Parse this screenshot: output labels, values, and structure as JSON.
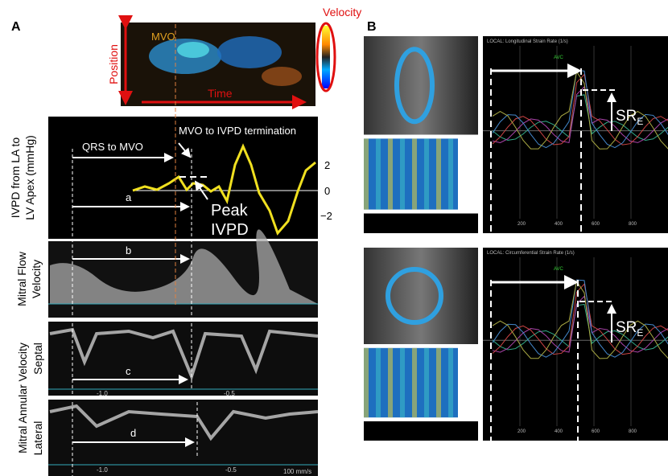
{
  "panel_a": {
    "letter": "A",
    "velocity": "Velocity",
    "mvo": "MVO",
    "position": "Position",
    "time": "Time",
    "ivpd_label": [
      "IVPD from LA to",
      "LV Apex (mmHg)"
    ],
    "qrs_to_mvo": "QRS to MVO",
    "mvo_to_termination": "MVO to IVPD termination",
    "ivpd_axis": [
      "2",
      "0",
      "−2"
    ],
    "peak_ivpd": [
      "Peak",
      "IVPD"
    ],
    "intervals": [
      "a",
      "b",
      "c",
      "d"
    ],
    "mitral_flow_label": [
      "Mitral Flow",
      "Velocity"
    ],
    "annular_label": "Mitral Annular Velocity",
    "septal": "Septal",
    "lateral": "Lateral",
    "septal_scale": [
      "-1.0",
      "-0.5"
    ],
    "lateral_scale": [
      "-1.0",
      "-0.5",
      "100 mm/s"
    ]
  },
  "panel_b": {
    "letter": "B",
    "top": {
      "title": "LOCAL: Longitudinal Strain Rate (1/s)",
      "avc": "AVC",
      "sre": {
        "main": "SR",
        "sub": "E"
      },
      "x_labels": [
        "200",
        "400",
        "600",
        "800"
      ]
    },
    "bottom": {
      "title": "LOCAL: Circumferential Strain Rate (1/s)",
      "avc": "AVC",
      "sre": {
        "main": "SR",
        "sub": "E"
      },
      "x_labels": [
        "200",
        "400",
        "600",
        "800"
      ]
    }
  }
}
